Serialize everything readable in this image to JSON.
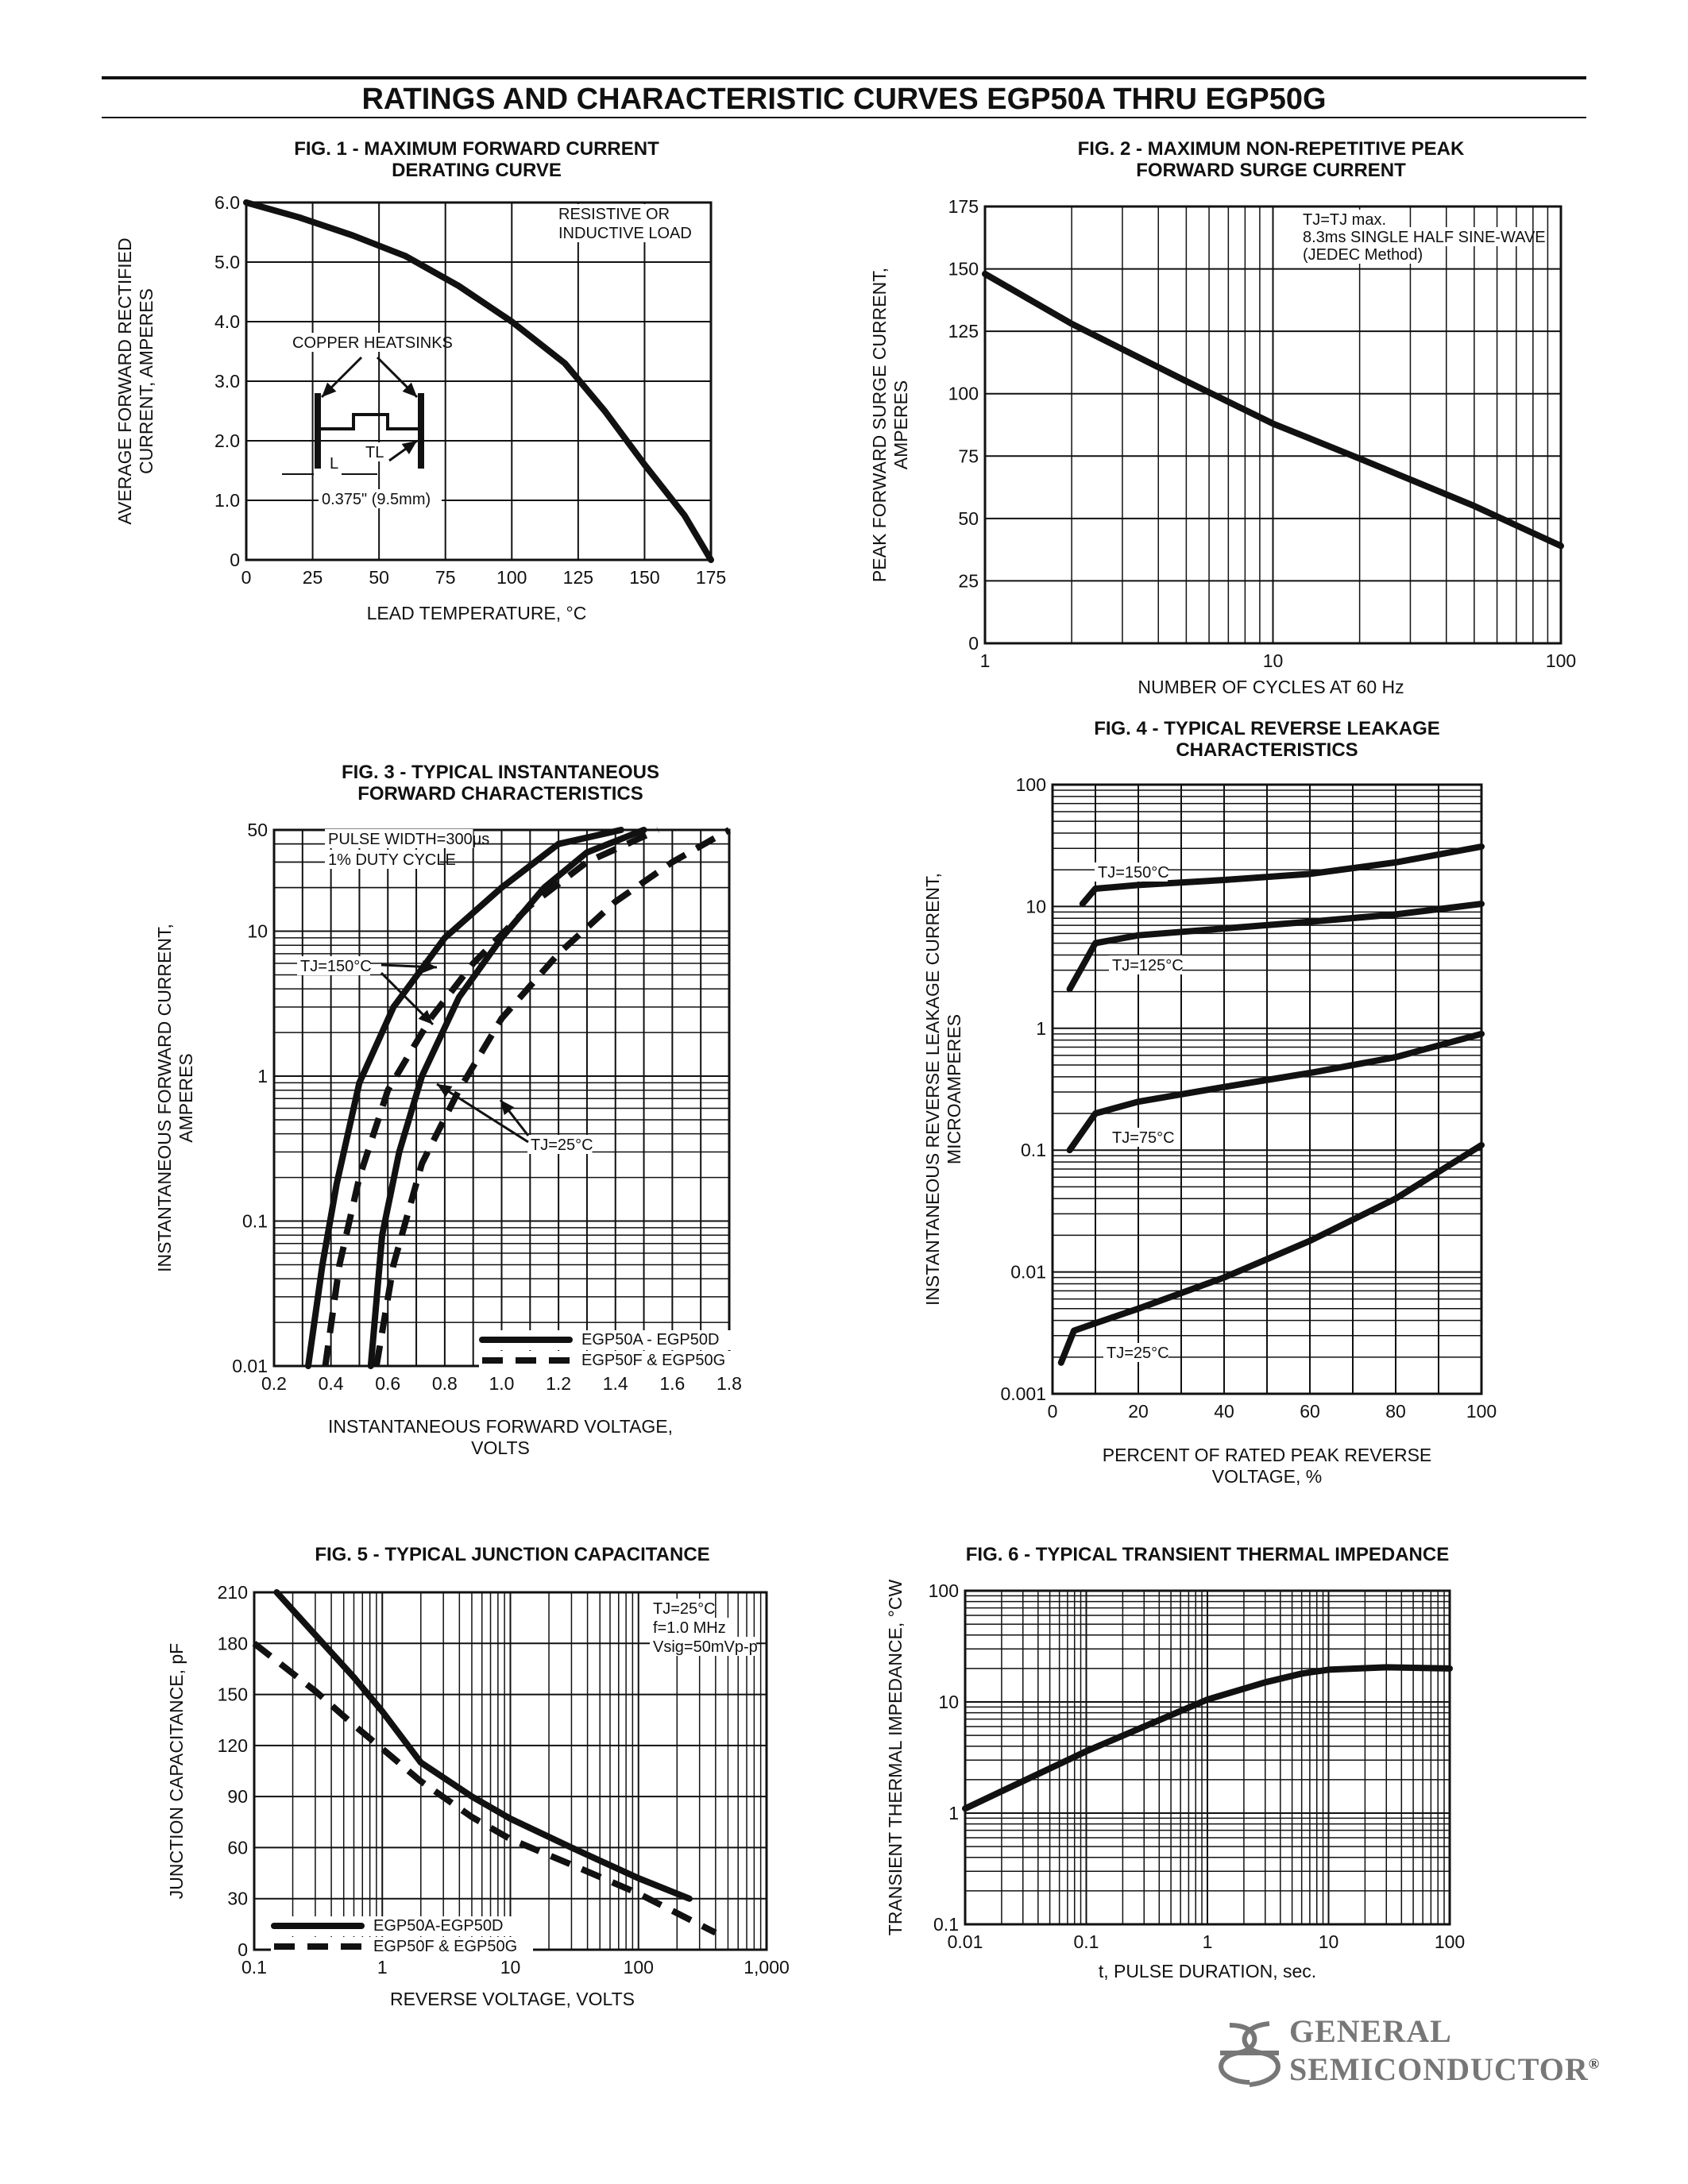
{
  "page": {
    "title": "RATINGS AND CHARACTERISTIC CURVES EGP50A THRU EGP50G"
  },
  "brand": {
    "line1": "GENERAL",
    "line2": "SEMICONDUCTOR",
    "mark": "®",
    "color": "#777777"
  },
  "chart_data": [
    {
      "id": "fig1",
      "type": "line",
      "title": [
        "FIG. 1 - MAXIMUM FORWARD CURRENT",
        "DERATING CURVE"
      ],
      "xlabel": "LEAD TEMPERATURE, °C",
      "ylabel": [
        "AVERAGE FORWARD RECTIFIED",
        "CURRENT, AMPERES"
      ],
      "xlim": [
        0,
        175
      ],
      "ylim": [
        0,
        6
      ],
      "xticks": [
        0,
        25,
        50,
        75,
        100,
        125,
        150,
        175
      ],
      "xtick_labels": [
        "0",
        "25",
        "50",
        "75",
        "100",
        "125",
        "150",
        "175"
      ],
      "yticks": [
        0,
        1,
        2,
        3,
        4,
        5,
        6
      ],
      "ytick_labels": [
        "0",
        "1.0",
        "2.0",
        "3.0",
        "4.0",
        "5.0",
        "6.0"
      ],
      "series": [
        {
          "name": "",
          "style": "solid",
          "x": [
            0,
            20,
            40,
            60,
            80,
            100,
            120,
            135,
            150,
            165,
            175
          ],
          "y": [
            6.0,
            5.75,
            5.45,
            5.1,
            4.6,
            4.0,
            3.3,
            2.5,
            1.6,
            0.75,
            0.0
          ]
        }
      ],
      "annotations": [
        {
          "text": [
            "RESISTIVE OR",
            "INDUCTIVE LOAD"
          ]
        },
        {
          "text": [
            "COPPER HEATSINKS"
          ]
        },
        {
          "text": [
            "L"
          ]
        },
        {
          "text": [
            "TL"
          ]
        },
        {
          "text": [
            "0.375\" (9.5mm)"
          ]
        }
      ]
    },
    {
      "id": "fig2",
      "type": "line",
      "title": [
        "FIG. 2 - MAXIMUM NON-REPETITIVE PEAK",
        "FORWARD SURGE CURRENT"
      ],
      "xlabel": "NUMBER OF CYCLES AT 60 Hz",
      "ylabel": [
        "PEAK FORWARD SURGE CURRENT,",
        "AMPERES"
      ],
      "xscale": "log",
      "xlim": [
        1,
        100
      ],
      "ylim": [
        0,
        175
      ],
      "xtick_labels": [
        "1",
        "10",
        "100"
      ],
      "yticks": [
        0,
        25,
        50,
        75,
        100,
        125,
        150,
        175
      ],
      "ytick_labels": [
        "0",
        "25",
        "50",
        "75",
        "100",
        "125",
        "150",
        "175"
      ],
      "series": [
        {
          "name": "",
          "style": "solid",
          "x": [
            1,
            2,
            5,
            10,
            20,
            50,
            100
          ],
          "y": [
            148,
            128,
            105,
            88,
            74,
            55,
            39
          ]
        }
      ],
      "annotations": [
        {
          "text": [
            "TJ=TJ max.",
            "8.3ms SINGLE HALF SINE-WAVE",
            "(JEDEC Method)"
          ]
        }
      ]
    },
    {
      "id": "fig3",
      "type": "line",
      "title": [
        "FIG. 3 - TYPICAL INSTANTANEOUS",
        "FORWARD CHARACTERISTICS"
      ],
      "xlabel": [
        "INSTANTANEOUS FORWARD VOLTAGE,",
        "VOLTS"
      ],
      "ylabel": [
        "INSTANTANEOUS FORWARD CURRENT,",
        "AMPERES"
      ],
      "yscale": "log",
      "xlim": [
        0.2,
        1.8
      ],
      "ylim": [
        0.01,
        50
      ],
      "xtick_labels": [
        "0.2",
        "0.4",
        "0.6",
        "0.8",
        "1.0",
        "1.2",
        "1.4",
        "1.6",
        "1.8"
      ],
      "ytick_labels": [
        "0.01",
        "0.1",
        "1",
        "10",
        "50"
      ],
      "series": [
        {
          "name": "EGP50A - EGP50D, TJ=150°C",
          "style": "solid",
          "x": [
            0.32,
            0.37,
            0.42,
            0.5,
            0.62,
            0.8,
            1.0,
            1.2,
            1.42
          ],
          "y": [
            0.01,
            0.05,
            0.18,
            0.9,
            3.0,
            9.0,
            20,
            40,
            50
          ]
        },
        {
          "name": "EGP50A - EGP50D, TJ=25°C",
          "style": "solid",
          "x": [
            0.54,
            0.58,
            0.64,
            0.72,
            0.85,
            1.0,
            1.15,
            1.3,
            1.5
          ],
          "y": [
            0.01,
            0.08,
            0.3,
            1.0,
            3.5,
            9.0,
            20,
            35,
            50
          ]
        },
        {
          "name": "EGP50F & EGP50G, TJ=150°C",
          "style": "dashed",
          "x": [
            0.38,
            0.43,
            0.5,
            0.6,
            0.75,
            0.9,
            1.1,
            1.3,
            1.55
          ],
          "y": [
            0.01,
            0.05,
            0.2,
            0.8,
            2.5,
            6.0,
            15,
            30,
            50
          ]
        },
        {
          "name": "EGP50F & EGP50G, TJ=25°C",
          "style": "dashed",
          "x": [
            0.56,
            0.62,
            0.72,
            0.85,
            1.0,
            1.2,
            1.4,
            1.6,
            1.8
          ],
          "y": [
            0.01,
            0.05,
            0.25,
            0.8,
            2.5,
            7.0,
            16,
            30,
            50
          ]
        }
      ],
      "annotations": [
        {
          "text": [
            "PULSE WIDTH=300μs",
            "1% DUTY CYCLE"
          ]
        },
        {
          "text": [
            "TJ=150°C"
          ]
        },
        {
          "text": [
            "TJ=25°C"
          ]
        }
      ],
      "legend": [
        {
          "label": "EGP50A - EGP50D",
          "style": "solid"
        },
        {
          "label": "EGP50F & EGP50G",
          "style": "dashed"
        }
      ]
    },
    {
      "id": "fig4",
      "type": "line",
      "title": [
        "FIG. 4 - TYPICAL REVERSE LEAKAGE",
        "CHARACTERISTICS"
      ],
      "xlabel": [
        "PERCENT OF RATED PEAK REVERSE",
        "VOLTAGE, %"
      ],
      "ylabel": [
        "INSTANTANEOUS REVERSE LEAKAGE CURRENT,",
        "MICROAMPERES"
      ],
      "yscale": "log",
      "xlim": [
        0,
        100
      ],
      "ylim": [
        0.001,
        100
      ],
      "xtick_labels": [
        "0",
        "20",
        "40",
        "60",
        "80",
        "100"
      ],
      "ytick_labels": [
        "0.001",
        "0.01",
        "0.1",
        "1",
        "10",
        "100"
      ],
      "series": [
        {
          "name": "TJ=150°C",
          "style": "solid",
          "x": [
            7,
            10,
            20,
            40,
            60,
            80,
            100
          ],
          "y": [
            10.5,
            14,
            15,
            16.5,
            18.5,
            23,
            31
          ]
        },
        {
          "name": "TJ=125°C",
          "style": "solid",
          "x": [
            4,
            10,
            20,
            40,
            60,
            80,
            100
          ],
          "y": [
            2.1,
            5.0,
            5.8,
            6.6,
            7.5,
            8.6,
            10.5
          ]
        },
        {
          "name": "TJ=75°C",
          "style": "solid",
          "x": [
            4,
            10,
            20,
            40,
            60,
            80,
            100
          ],
          "y": [
            0.1,
            0.2,
            0.25,
            0.33,
            0.43,
            0.58,
            0.9
          ]
        },
        {
          "name": "TJ=25°C",
          "style": "solid",
          "x": [
            2,
            5,
            10,
            20,
            40,
            60,
            80,
            100
          ],
          "y": [
            0.0018,
            0.0033,
            0.0038,
            0.005,
            0.009,
            0.018,
            0.04,
            0.11
          ]
        }
      ],
      "annotations": [
        {
          "text": [
            "TJ=150°C"
          ]
        },
        {
          "text": [
            "TJ=125°C"
          ]
        },
        {
          "text": [
            "TJ=75°C"
          ]
        },
        {
          "text": [
            "TJ=25°C"
          ]
        }
      ]
    },
    {
      "id": "fig5",
      "type": "line",
      "title": [
        "FIG. 5 - TYPICAL JUNCTION CAPACITANCE"
      ],
      "xlabel": "REVERSE VOLTAGE, VOLTS",
      "ylabel": [
        "JUNCTION CAPACITANCE, pF"
      ],
      "xscale": "log",
      "xlim": [
        0.1,
        1000
      ],
      "ylim": [
        0,
        210
      ],
      "xtick_labels": [
        "0.1",
        "1",
        "10",
        "100",
        "1,000"
      ],
      "yticks": [
        0,
        30,
        60,
        90,
        120,
        150,
        180,
        210
      ],
      "ytick_labels": [
        "0",
        "30",
        "60",
        "90",
        "120",
        "150",
        "180",
        "210"
      ],
      "series": [
        {
          "name": "EGP50A-EGP50D",
          "style": "solid",
          "x": [
            0.15,
            0.3,
            0.6,
            1,
            2,
            5,
            10,
            30,
            100,
            250
          ],
          "y": [
            210,
            185,
            160,
            140,
            110,
            90,
            77,
            60,
            42,
            30
          ]
        },
        {
          "name": "EGP50F & EGP50G",
          "style": "dashed",
          "x": [
            0.1,
            0.3,
            0.6,
            1,
            2,
            5,
            10,
            30,
            100,
            400
          ],
          "y": [
            180,
            152,
            132,
            118,
            99,
            78,
            65,
            50,
            33,
            10
          ]
        }
      ],
      "annotations": [
        {
          "text": [
            "TJ=25°C",
            "f=1.0 MHz",
            "Vsig=50mVp-p"
          ]
        }
      ],
      "legend": [
        {
          "label": "EGP50A-EGP50D",
          "style": "solid"
        },
        {
          "label": "EGP50F & EGP50G",
          "style": "dashed"
        }
      ]
    },
    {
      "id": "fig6",
      "type": "line",
      "title": [
        "FIG. 6 - TYPICAL TRANSIENT THERMAL IMPEDANCE"
      ],
      "xlabel": "t, PULSE DURATION, sec.",
      "ylabel": [
        "TRANSIENT THERMAL IMPEDANCE, °CW"
      ],
      "xscale": "log",
      "yscale": "log",
      "xlim": [
        0.01,
        100
      ],
      "ylim": [
        0.1,
        100
      ],
      "xtick_labels": [
        "0.01",
        "0.1",
        "1",
        "10",
        "100"
      ],
      "ytick_labels": [
        "0.1",
        "1",
        "10",
        "100"
      ],
      "series": [
        {
          "name": "",
          "style": "solid",
          "x": [
            0.01,
            0.1,
            1,
            3,
            6,
            10,
            30,
            100
          ],
          "y": [
            1.1,
            3.6,
            10.5,
            15,
            18,
            19.5,
            20.5,
            20
          ]
        }
      ],
      "annotations": []
    }
  ]
}
